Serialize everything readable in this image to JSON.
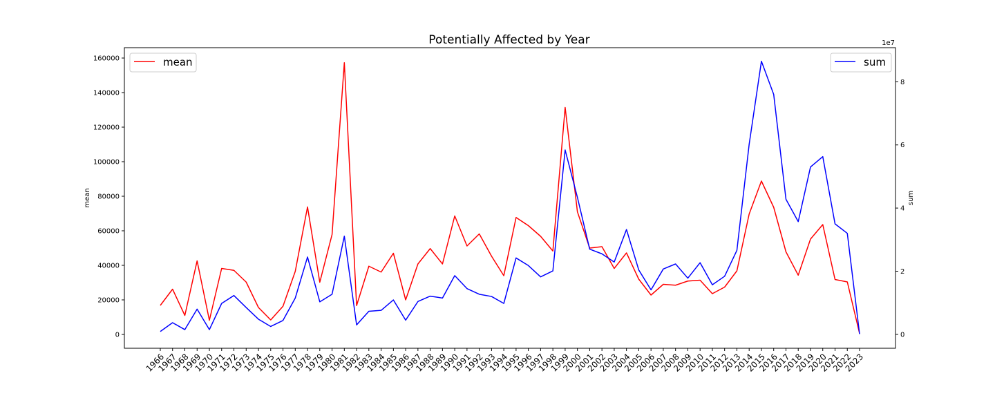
{
  "chart_data": {
    "type": "line",
    "title": "Potentially Affected by Year",
    "xlabel": "",
    "ylabel_left": "mean",
    "ylabel_right": "sum",
    "right_axis_offset_text": "1e7",
    "x": [
      "1966",
      "1967",
      "1968",
      "1969",
      "1970",
      "1971",
      "1972",
      "1973",
      "1974",
      "1975",
      "1976",
      "1977",
      "1978",
      "1979",
      "1980",
      "1981",
      "1982",
      "1983",
      "1984",
      "1985",
      "1986",
      "1987",
      "1988",
      "1989",
      "1990",
      "1991",
      "1992",
      "1993",
      "1994",
      "1995",
      "1996",
      "1997",
      "1998",
      "1999",
      "2000",
      "2001",
      "2002",
      "2003",
      "2004",
      "2005",
      "2006",
      "2007",
      "2008",
      "2009",
      "2010",
      "2011",
      "2012",
      "2013",
      "2014",
      "2015",
      "2016",
      "2017",
      "2018",
      "2019",
      "2020",
      "2021",
      "2022",
      "2023"
    ],
    "ylim_left": [
      -8000,
      166000
    ],
    "yticks_left": [
      0,
      20000,
      40000,
      60000,
      80000,
      100000,
      120000,
      140000,
      160000
    ],
    "ylim_right": [
      -4400000,
      90800000
    ],
    "yticks_right": [
      0,
      20000000,
      40000000,
      60000000,
      80000000
    ],
    "yticks_right_labels": [
      "0",
      "2",
      "4",
      "6",
      "8"
    ],
    "grid": false,
    "series": [
      {
        "name": "mean",
        "axis": "left",
        "color": "#ff0000",
        "legend_position": "top-left",
        "values": [
          16800,
          26200,
          11000,
          42600,
          8200,
          38200,
          37100,
          30300,
          15600,
          8400,
          16300,
          36500,
          73800,
          30200,
          57800,
          157300,
          16700,
          39500,
          36100,
          47000,
          20000,
          40800,
          49700,
          40800,
          68600,
          51200,
          58200,
          45300,
          34000,
          67700,
          63000,
          56800,
          48300,
          131400,
          71000,
          50000,
          50800,
          38200,
          47200,
          32000,
          22800,
          29000,
          28500,
          30900,
          31400,
          23600,
          27400,
          36800,
          69700,
          88800,
          73600,
          47800,
          34300,
          55200,
          63600,
          31800,
          30400,
          500
        ]
      },
      {
        "name": "sum",
        "axis": "right",
        "color": "#0000ff",
        "legend_position": "top-right",
        "values": [
          900000,
          3700000,
          1500000,
          8000000,
          1500000,
          9800000,
          12300000,
          8500000,
          4800000,
          2500000,
          4400000,
          11500000,
          24500000,
          10300000,
          12700000,
          31100000,
          3000000,
          7300000,
          7600000,
          10900000,
          4500000,
          10400000,
          12100000,
          11500000,
          18600000,
          14500000,
          12700000,
          12000000,
          9800000,
          24200000,
          21800000,
          18200000,
          20100000,
          58400000,
          43400000,
          27000000,
          25500000,
          22900000,
          33200000,
          20400000,
          14100000,
          20700000,
          22300000,
          17800000,
          22700000,
          15700000,
          18400000,
          26600000,
          60200000,
          86500000,
          76000000,
          42800000,
          35700000,
          53000000,
          56300000,
          35000000,
          32000000,
          100000
        ]
      }
    ]
  }
}
